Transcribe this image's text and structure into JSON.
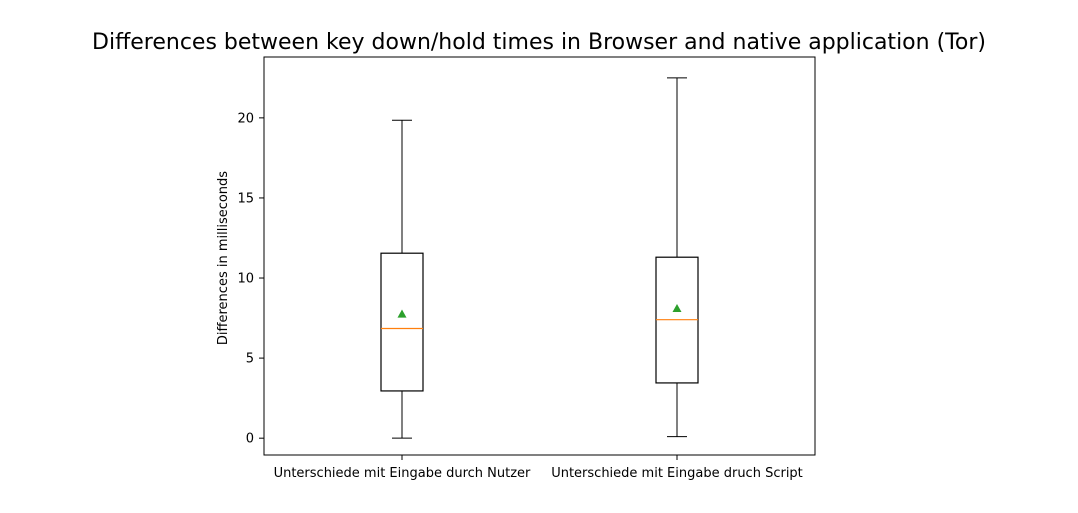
{
  "chart_data": {
    "type": "box",
    "title": "Differences between key down/hold times in Browser and native application (Tor)",
    "xlabel": "",
    "ylabel": "Differences in milliseconds",
    "ylim": [
      -1.05,
      23.8
    ],
    "yticks": [
      0,
      5,
      10,
      15,
      20
    ],
    "grid": false,
    "categories": [
      "Unterschiede mit Eingabe durch Nutzer",
      "Unterschiede mit Eingabe druch Script"
    ],
    "boxes": [
      {
        "whisker_low": 0.0,
        "q1": 2.95,
        "median": 6.85,
        "q3": 11.55,
        "whisker_high": 19.85,
        "mean": 7.75
      },
      {
        "whisker_low": 0.1,
        "q1": 3.45,
        "median": 7.4,
        "q3": 11.3,
        "whisker_high": 22.5,
        "mean": 8.1
      }
    ],
    "colors": {
      "box": "#000000",
      "median": "#ff7f0e",
      "mean_marker": "#2ca02c"
    },
    "mean_marker": "triangle"
  }
}
